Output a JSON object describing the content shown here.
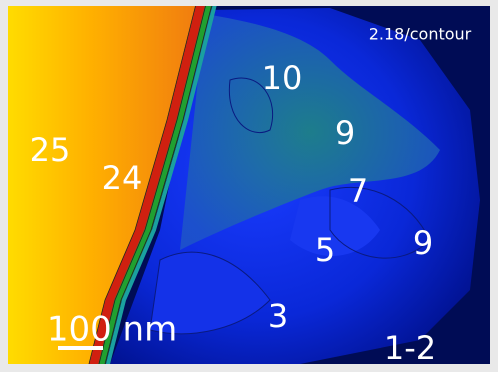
{
  "image": {
    "annotation": "2.18/contour",
    "labels": [
      "25",
      "24",
      "10",
      "9",
      "7",
      "5",
      "9",
      "3",
      "1-2"
    ],
    "scale_bar": "100 nm"
  }
}
